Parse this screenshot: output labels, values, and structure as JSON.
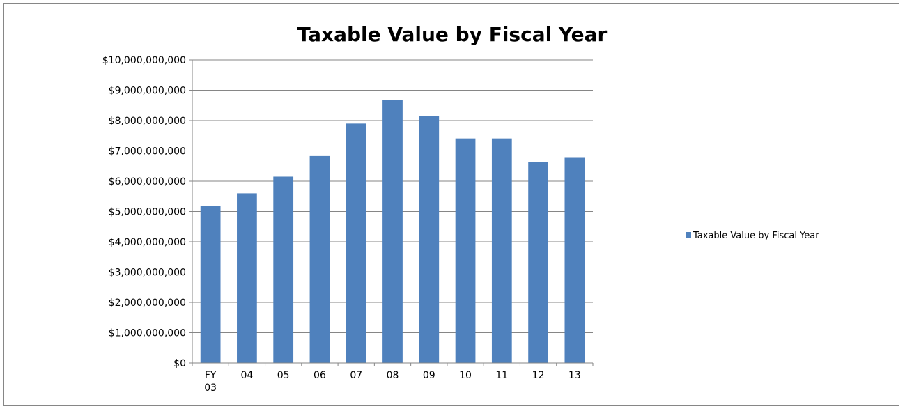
{
  "chart_data": {
    "type": "bar",
    "title": "Taxable Value by Fiscal Year",
    "xlabel": "",
    "ylabel": "",
    "categories": [
      "FY 03",
      "04",
      "05",
      "06",
      "07",
      "08",
      "09",
      "10",
      "11",
      "12",
      "13"
    ],
    "series": [
      {
        "name": "Taxable Value by Fiscal Year",
        "color": "#4f81bd",
        "values": [
          5180000000,
          5600000000,
          6150000000,
          6830000000,
          7900000000,
          8670000000,
          8160000000,
          7410000000,
          7410000000,
          6630000000,
          6770000000
        ]
      }
    ],
    "ylim": [
      0,
      10000000000
    ],
    "yticks": [
      0,
      1000000000,
      2000000000,
      3000000000,
      4000000000,
      5000000000,
      6000000000,
      7000000000,
      8000000000,
      9000000000,
      10000000000
    ],
    "ytick_labels": [
      "$0",
      "$1,000,000,000",
      "$2,000,000,000",
      "$3,000,000,000",
      "$4,000,000,000",
      "$5,000,000,000",
      "$6,000,000,000",
      "$7,000,000,000",
      "$8,000,000,000",
      "$9,000,000,000",
      "$10,000,000,000"
    ],
    "grid": true,
    "legend_position": "right"
  }
}
